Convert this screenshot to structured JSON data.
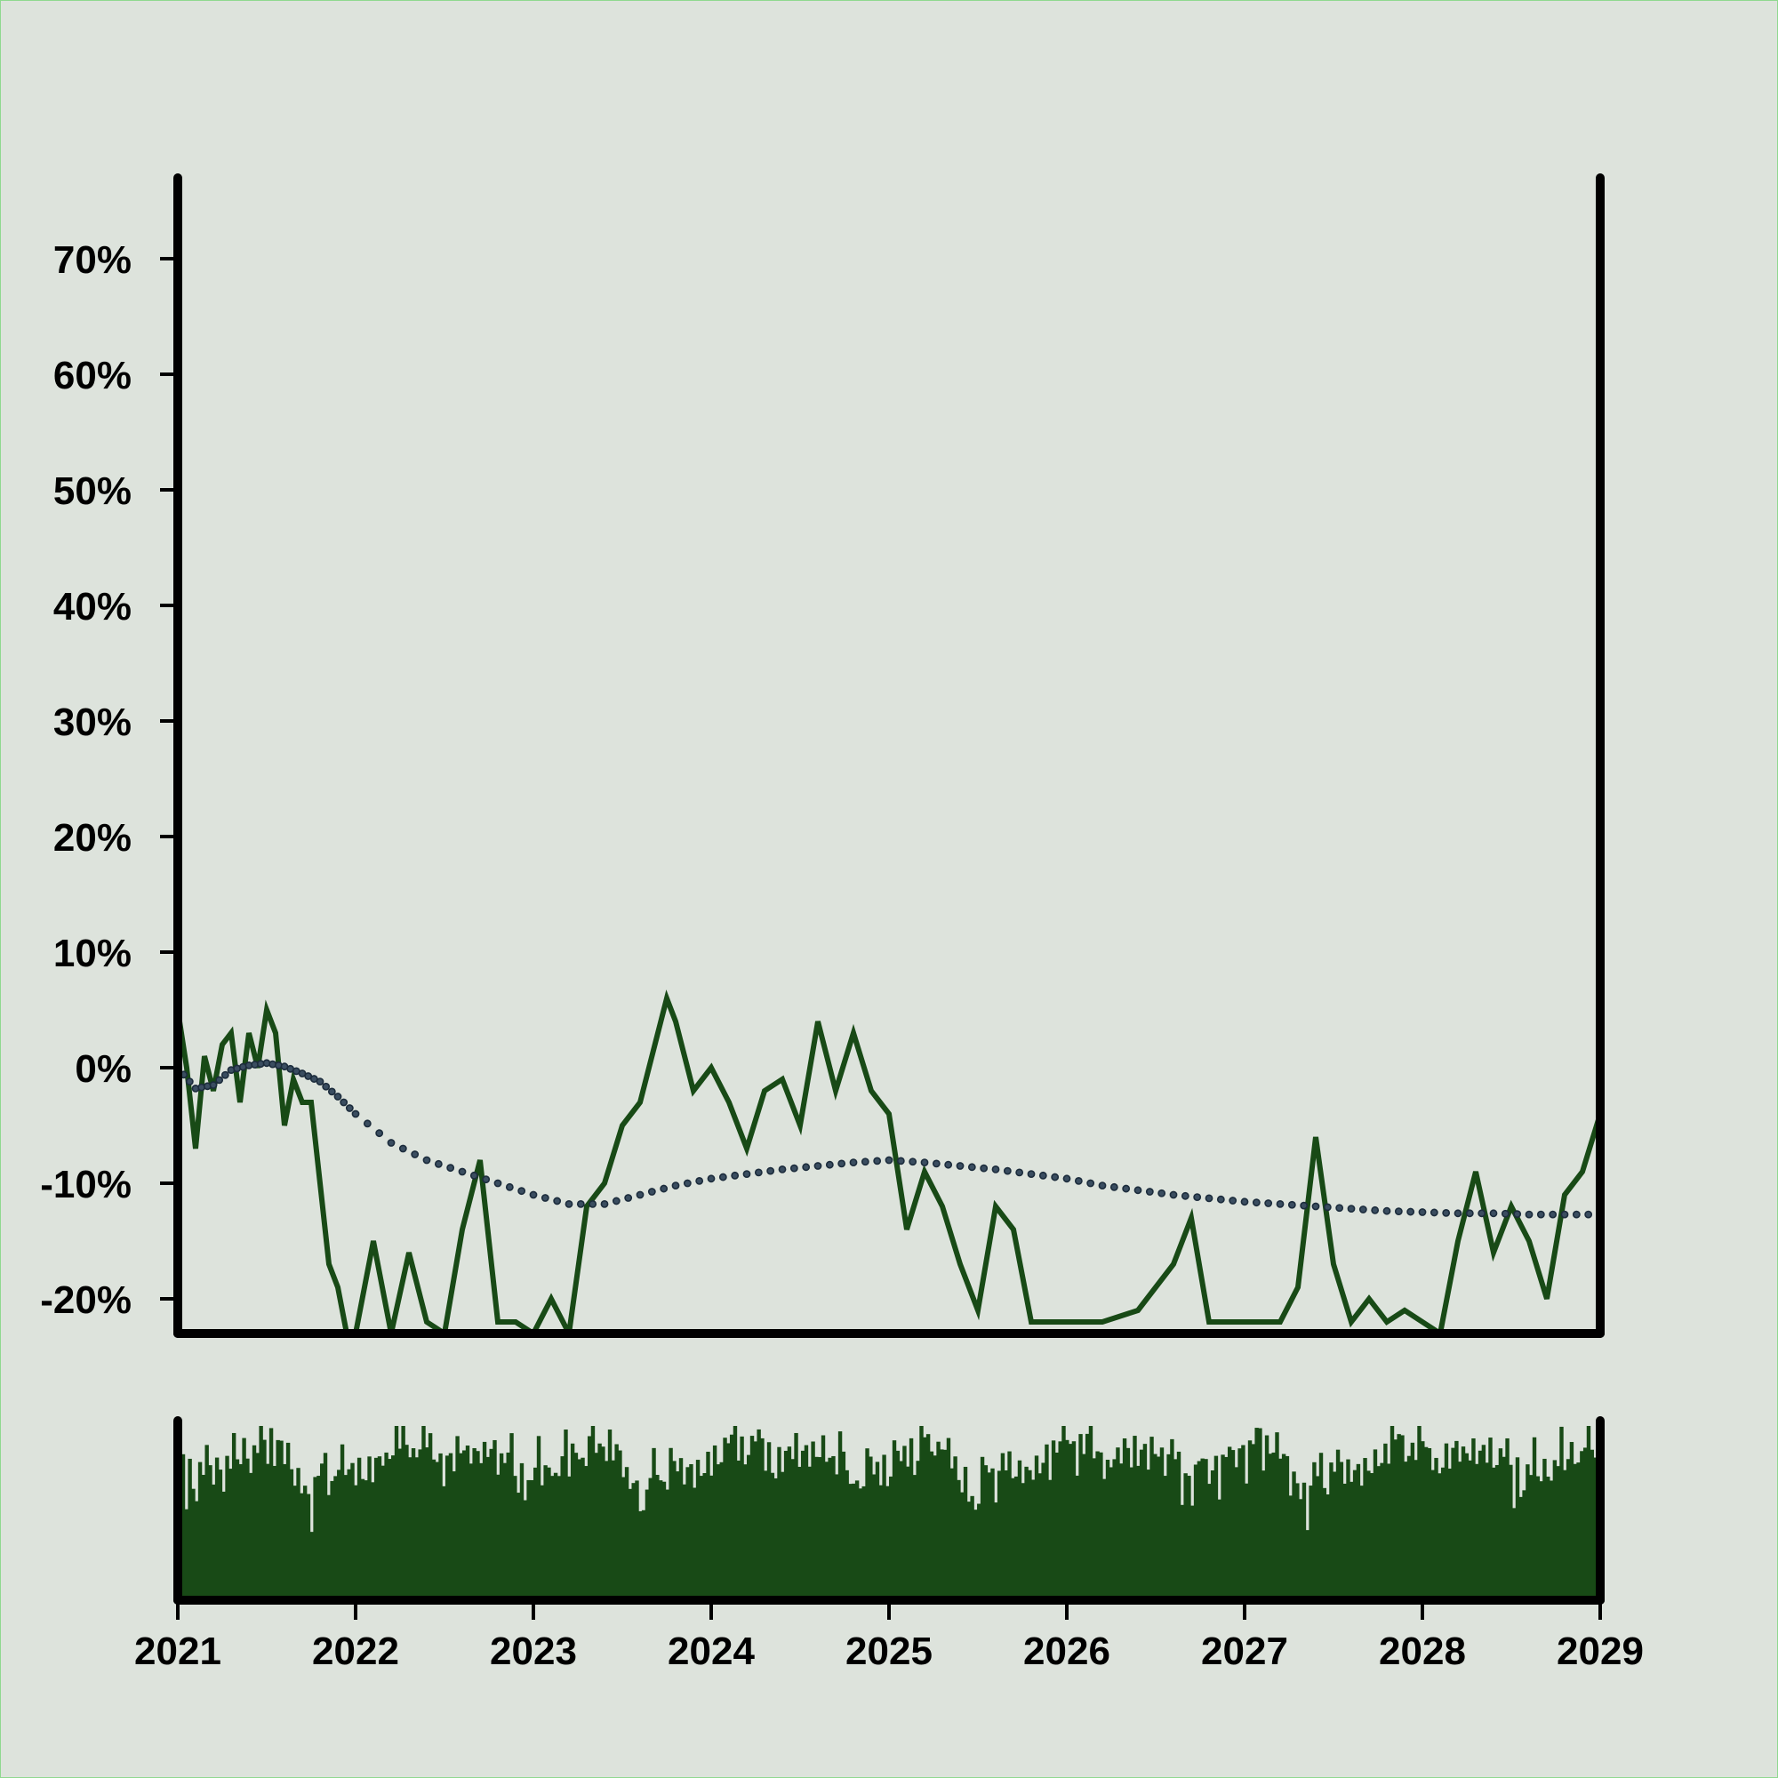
{
  "chart_data": {
    "type": "line",
    "title": "",
    "xlabel": "",
    "ylabel": "",
    "xlim": [
      2021,
      2029
    ],
    "ylim": [
      -23,
      77
    ],
    "y_ticks": [
      -20,
      -10,
      0,
      10,
      20,
      30,
      40,
      50,
      60,
      70
    ],
    "y_tick_labels": [
      "-20%",
      "-10%",
      "0%",
      "10%",
      "20%",
      "30%",
      "40%",
      "50%",
      "60%",
      "70%"
    ],
    "x_ticks": [
      2021,
      2022,
      2023,
      2024,
      2025,
      2026,
      2027,
      2028,
      2029
    ],
    "x_tick_labels": [
      "2021",
      "2022",
      "2023",
      "2024",
      "2025",
      "2026",
      "2027",
      "2028",
      "2029"
    ],
    "grid": false,
    "legend": "none",
    "colors": {
      "series": "#184a16",
      "trend": "#1c2c3c",
      "background": "#dde3dc",
      "axis": "#000000"
    },
    "series": [
      {
        "style": "solid",
        "x": [
          2021.0,
          2021.05,
          2021.1,
          2021.15,
          2021.2,
          2021.25,
          2021.3,
          2021.35,
          2021.4,
          2021.45,
          2021.5,
          2021.55,
          2021.6,
          2021.65,
          2021.7,
          2021.75,
          2021.8,
          2021.85,
          2021.9,
          2021.95,
          2022.0,
          2022.1,
          2022.2,
          2022.3,
          2022.4,
          2022.5,
          2022.6,
          2022.7,
          2022.8,
          2022.9,
          2023.0,
          2023.1,
          2023.2,
          2023.3,
          2023.4,
          2023.5,
          2023.6,
          2023.7,
          2023.75,
          2023.8,
          2023.9,
          2024.0,
          2024.1,
          2024.2,
          2024.3,
          2024.4,
          2024.5,
          2024.6,
          2024.7,
          2024.8,
          2024.9,
          2025.0,
          2025.1,
          2025.2,
          2025.3,
          2025.4,
          2025.5,
          2025.6,
          2025.7,
          2025.8,
          2025.9,
          2026.0,
          2026.2,
          2026.4,
          2026.6,
          2026.7,
          2026.8,
          2027.0,
          2027.2,
          2027.3,
          2027.4,
          2027.5,
          2027.6,
          2027.7,
          2027.8,
          2027.9,
          2028.0,
          2028.1,
          2028.2,
          2028.3,
          2028.4,
          2028.5,
          2028.6,
          2028.7,
          2028.8,
          2028.9,
          2029.0
        ],
        "y": [
          5,
          0,
          -7,
          1,
          -2,
          2,
          3,
          -3,
          3,
          0,
          5,
          3,
          -5,
          -1,
          -3,
          -3,
          -10,
          -17,
          -19,
          -23,
          -23,
          -15,
          -23,
          -16,
          -22,
          -23,
          -14,
          -8,
          -22,
          -22,
          -23,
          -20,
          -23,
          -12,
          -10,
          -5,
          -3,
          3,
          6,
          4,
          -2,
          0,
          -3,
          -7,
          -2,
          -1,
          -5,
          4,
          -2,
          3,
          -2,
          -4,
          -14,
          -9,
          -12,
          -17,
          -21,
          -12,
          -14,
          -22,
          -22,
          -22,
          -22,
          -21,
          -17,
          -13,
          -22,
          -22,
          -22,
          -19,
          -6,
          -17,
          -22,
          -20,
          -22,
          -21,
          -22,
          -23,
          -15,
          -9,
          -16,
          -12,
          -15,
          -20,
          -11,
          -9,
          -4
        ]
      },
      {
        "style": "dotted",
        "x": [
          2021.0,
          2021.1,
          2021.2,
          2021.3,
          2021.4,
          2021.5,
          2021.6,
          2021.7,
          2021.8,
          2021.9,
          2022.0,
          2022.2,
          2022.4,
          2022.6,
          2022.8,
          2023.0,
          2023.2,
          2023.4,
          2023.6,
          2023.8,
          2024.0,
          2024.2,
          2024.4,
          2024.6,
          2024.8,
          2025.0,
          2025.2,
          2025.4,
          2025.6,
          2025.8,
          2026.0,
          2026.2,
          2026.4,
          2026.6,
          2026.8,
          2027.0,
          2027.2,
          2027.4,
          2027.6,
          2027.8,
          2028.0,
          2028.2,
          2028.4,
          2028.6,
          2028.8,
          2029.0
        ],
        "y": [
          0,
          -1.8,
          -1.5,
          -0.2,
          0.2,
          0.4,
          0.1,
          -0.5,
          -1.2,
          -2.5,
          -4,
          -6.5,
          -8,
          -9,
          -10,
          -11,
          -11.8,
          -11.8,
          -11,
          -10.2,
          -9.6,
          -9.2,
          -8.8,
          -8.5,
          -8.2,
          -8,
          -8.2,
          -8.5,
          -8.8,
          -9.2,
          -9.6,
          -10.2,
          -10.6,
          -11,
          -11.3,
          -11.6,
          -11.8,
          -12,
          -12.2,
          -12.4,
          -12.5,
          -12.6,
          -12.6,
          -12.7,
          -12.7,
          -12.7
        ]
      }
    ],
    "volume": {
      "type": "bar",
      "count": 420,
      "range": [
        0,
        1
      ],
      "values": [
        0.82,
        0.74,
        0.6,
        0.79,
        0.71,
        0.66,
        0.72,
        0.75,
        0.81,
        0.69,
        0.73,
        0.78,
        0.84,
        0.7,
        0.77,
        0.8,
        0.86,
        0.74,
        0.83,
        0.88,
        0.92,
        0.79,
        0.85,
        0.9,
        0.95,
        0.87,
        0.81,
        0.93,
        0.89,
        0.96,
        0.9,
        0.84,
        0.78,
        0.72,
        0.66,
        0.7,
        0.74,
        0.68,
        0.62,
        0.45,
        0.58,
        0.7,
        0.76,
        0.79,
        0.73,
        0.69,
        0.75,
        0.8,
        0.77,
        0.72,
        0.7,
        0.74,
        0.78,
        0.81,
        0.76,
        0.73,
        0.71,
        0.69,
        0.74,
        0.79,
        0.88,
        0.83,
        0.9,
        0.86,
        0.92,
        0.89,
        0.94,
        0.87,
        0.91,
        0.85,
        0.93,
        0.88,
        0.95,
        0.9,
        0.84,
        0.8,
        0.86,
        0.82,
        0.78,
        0.83,
        0.79,
        0.76,
        0.81,
        0.85,
        0.9,
        0.87,
        0.92,
        0.86,
        0.83,
        0.8,
        0.77,
        0.84,
        0.88,
        0.91,
        0.86,
        0.82,
        0.79,
        0.85
      ]
    }
  }
}
